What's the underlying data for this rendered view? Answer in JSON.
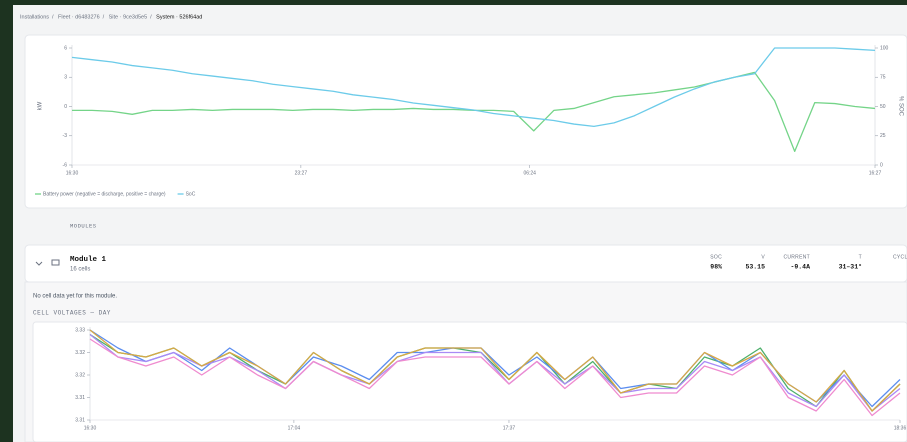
{
  "breadcrumb": [
    "Installations",
    "Fleet · d6483276",
    "Site · 9ce3d5e5",
    "System · 526f64ad"
  ],
  "chart_data": [
    {
      "type": "line",
      "ylabel": "kW",
      "y2label": "% SOC",
      "xlim": [
        0,
        40
      ],
      "xticks": [
        {
          "value": 0,
          "label": "16:30"
        },
        {
          "value": 11.4,
          "label": "23:27"
        },
        {
          "value": 22.8,
          "label": "06:24"
        },
        {
          "value": 40,
          "label": "16:27"
        }
      ],
      "ylim": [
        -6,
        6
      ],
      "yticks": [
        6,
        3,
        0,
        -3,
        -6
      ],
      "y2lim": [
        0,
        100
      ],
      "y2ticks": [
        100,
        75,
        50,
        25,
        0
      ],
      "series": [
        {
          "name": "Battery power (negative = discharge, positive = charge)",
          "color": "#74d488",
          "values": [
            -0.4,
            -0.4,
            -0.5,
            -0.8,
            -0.4,
            -0.4,
            -0.3,
            -0.4,
            -0.3,
            -0.3,
            -0.3,
            -0.4,
            -0.3,
            -0.3,
            -0.4,
            -0.3,
            -0.3,
            -0.2,
            -0.3,
            -0.3,
            -0.4,
            -0.4,
            -0.5,
            -2.5,
            -0.4,
            -0.2,
            0.4,
            1.0,
            1.2,
            1.4,
            1.7,
            2.0,
            2.5,
            3.0,
            3.5,
            0.6,
            -4.6,
            0.4,
            0.3,
            0.0,
            -0.2
          ]
        },
        {
          "name": "SoC",
          "color": "#6ccbe9",
          "axis": "y2",
          "values": [
            92,
            90,
            88,
            85,
            83,
            81,
            78,
            76,
            74,
            72,
            69,
            67,
            65,
            63,
            60,
            58,
            56,
            53,
            51,
            49,
            47,
            44,
            42,
            40,
            38,
            35,
            33,
            36,
            42,
            50,
            58,
            65,
            71,
            75,
            78,
            100,
            100,
            100,
            100,
            99,
            98
          ]
        }
      ]
    },
    {
      "type": "line",
      "title": "CELL VOLTAGES — DAY",
      "xlim": [
        0,
        29
      ],
      "xticks": [
        {
          "value": 0,
          "label": "16:30"
        },
        {
          "value": 7.3,
          "label": "17:04"
        },
        {
          "value": 15,
          "label": "17:37"
        },
        {
          "value": 29,
          "label": "18:36"
        }
      ],
      "ylim": [
        3.31,
        3.33
      ],
      "yticks": [
        {
          "value": 3.33,
          "label": "3.33"
        },
        {
          "value": 3.325,
          "label": "3.32"
        },
        {
          "value": 3.32,
          "label": "3.32"
        },
        {
          "value": 3.315,
          "label": "3.31"
        },
        {
          "value": 3.31,
          "label": "3.31"
        }
      ],
      "series": [
        {
          "color": "#4caf6a",
          "values": [
            3.329,
            3.325,
            3.324,
            3.326,
            3.322,
            3.325,
            3.321,
            3.318,
            3.325,
            3.321,
            3.318,
            3.324,
            3.326,
            3.326,
            3.325,
            3.319,
            3.325,
            3.318,
            3.323,
            3.316,
            3.318,
            3.317,
            3.324,
            3.322,
            3.326,
            3.317,
            3.313,
            3.321,
            3.312,
            3.318
          ]
        },
        {
          "color": "#5b8def",
          "values": [
            3.33,
            3.326,
            3.323,
            3.325,
            3.321,
            3.326,
            3.322,
            3.318,
            3.324,
            3.322,
            3.319,
            3.325,
            3.325,
            3.326,
            3.326,
            3.32,
            3.324,
            3.319,
            3.324,
            3.317,
            3.318,
            3.318,
            3.325,
            3.321,
            3.325,
            3.318,
            3.314,
            3.32,
            3.313,
            3.319
          ]
        },
        {
          "color": "#a98bf5",
          "values": [
            3.329,
            3.324,
            3.323,
            3.325,
            3.322,
            3.324,
            3.321,
            3.317,
            3.323,
            3.32,
            3.318,
            3.323,
            3.325,
            3.325,
            3.325,
            3.318,
            3.323,
            3.318,
            3.322,
            3.316,
            3.317,
            3.317,
            3.323,
            3.321,
            3.324,
            3.316,
            3.313,
            3.32,
            3.312,
            3.317
          ]
        },
        {
          "color": "#ef8bcf",
          "values": [
            3.328,
            3.324,
            3.322,
            3.324,
            3.32,
            3.324,
            3.32,
            3.317,
            3.323,
            3.32,
            3.317,
            3.323,
            3.324,
            3.324,
            3.324,
            3.318,
            3.323,
            3.317,
            3.322,
            3.315,
            3.316,
            3.316,
            3.322,
            3.32,
            3.324,
            3.315,
            3.312,
            3.319,
            3.311,
            3.316
          ]
        },
        {
          "color": "#d8a845",
          "values": [
            3.33,
            3.325,
            3.324,
            3.326,
            3.322,
            3.325,
            3.322,
            3.318,
            3.325,
            3.321,
            3.318,
            3.324,
            3.326,
            3.326,
            3.326,
            3.319,
            3.325,
            3.319,
            3.324,
            3.316,
            3.318,
            3.318,
            3.325,
            3.322,
            3.325,
            3.318,
            3.314,
            3.321,
            3.312,
            3.318
          ]
        }
      ]
    }
  ],
  "modules_header": "MODULES",
  "module": {
    "name": "Module 1",
    "cells": "16 cells",
    "stats": [
      {
        "label": "SOC",
        "value": "98%"
      },
      {
        "label": "V",
        "value": "53.15"
      },
      {
        "label": "CURRENT",
        "value": "-9.4A"
      },
      {
        "label": "T",
        "value": "31–31°"
      },
      {
        "label": "CYCLES"
      }
    ],
    "note": "No cell data yet for this module."
  }
}
